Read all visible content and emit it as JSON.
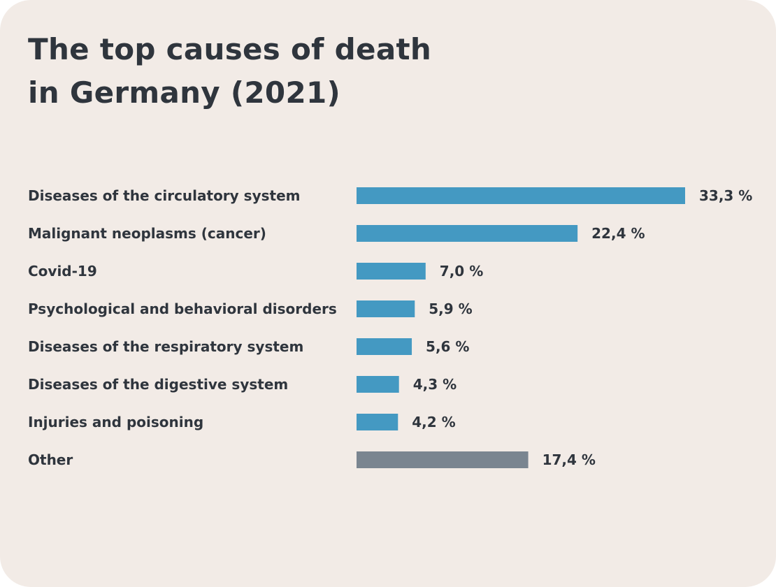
{
  "title_line1": "The top causes of death",
  "title_line2": "in Germany (2021)",
  "colors": {
    "main": "#4499c2",
    "other": "#7a8590",
    "text": "#2f353d",
    "background": "#f2ebe6"
  },
  "chart_data": {
    "type": "bar",
    "orientation": "horizontal",
    "title": "The top causes of death in Germany (2021)",
    "categories": [
      "Diseases of the circulatory system",
      "Malignant neoplasms (cancer)",
      "Covid-19",
      "Psychological and behavioral disorders",
      "Diseases of the respiratory system",
      "Diseases of the digestive system",
      "Injuries and poisoning",
      "Other"
    ],
    "values": [
      33.3,
      22.4,
      7.0,
      5.9,
      5.6,
      4.3,
      4.2,
      17.4
    ],
    "value_labels": [
      "33,3 %",
      "22,4 %",
      "7,0 %",
      "5,9 %",
      "5,6 %",
      "4,3 %",
      "4,2 %",
      "17,4 %"
    ],
    "unit": "%",
    "xlabel": "",
    "ylabel": "",
    "grid": false
  }
}
